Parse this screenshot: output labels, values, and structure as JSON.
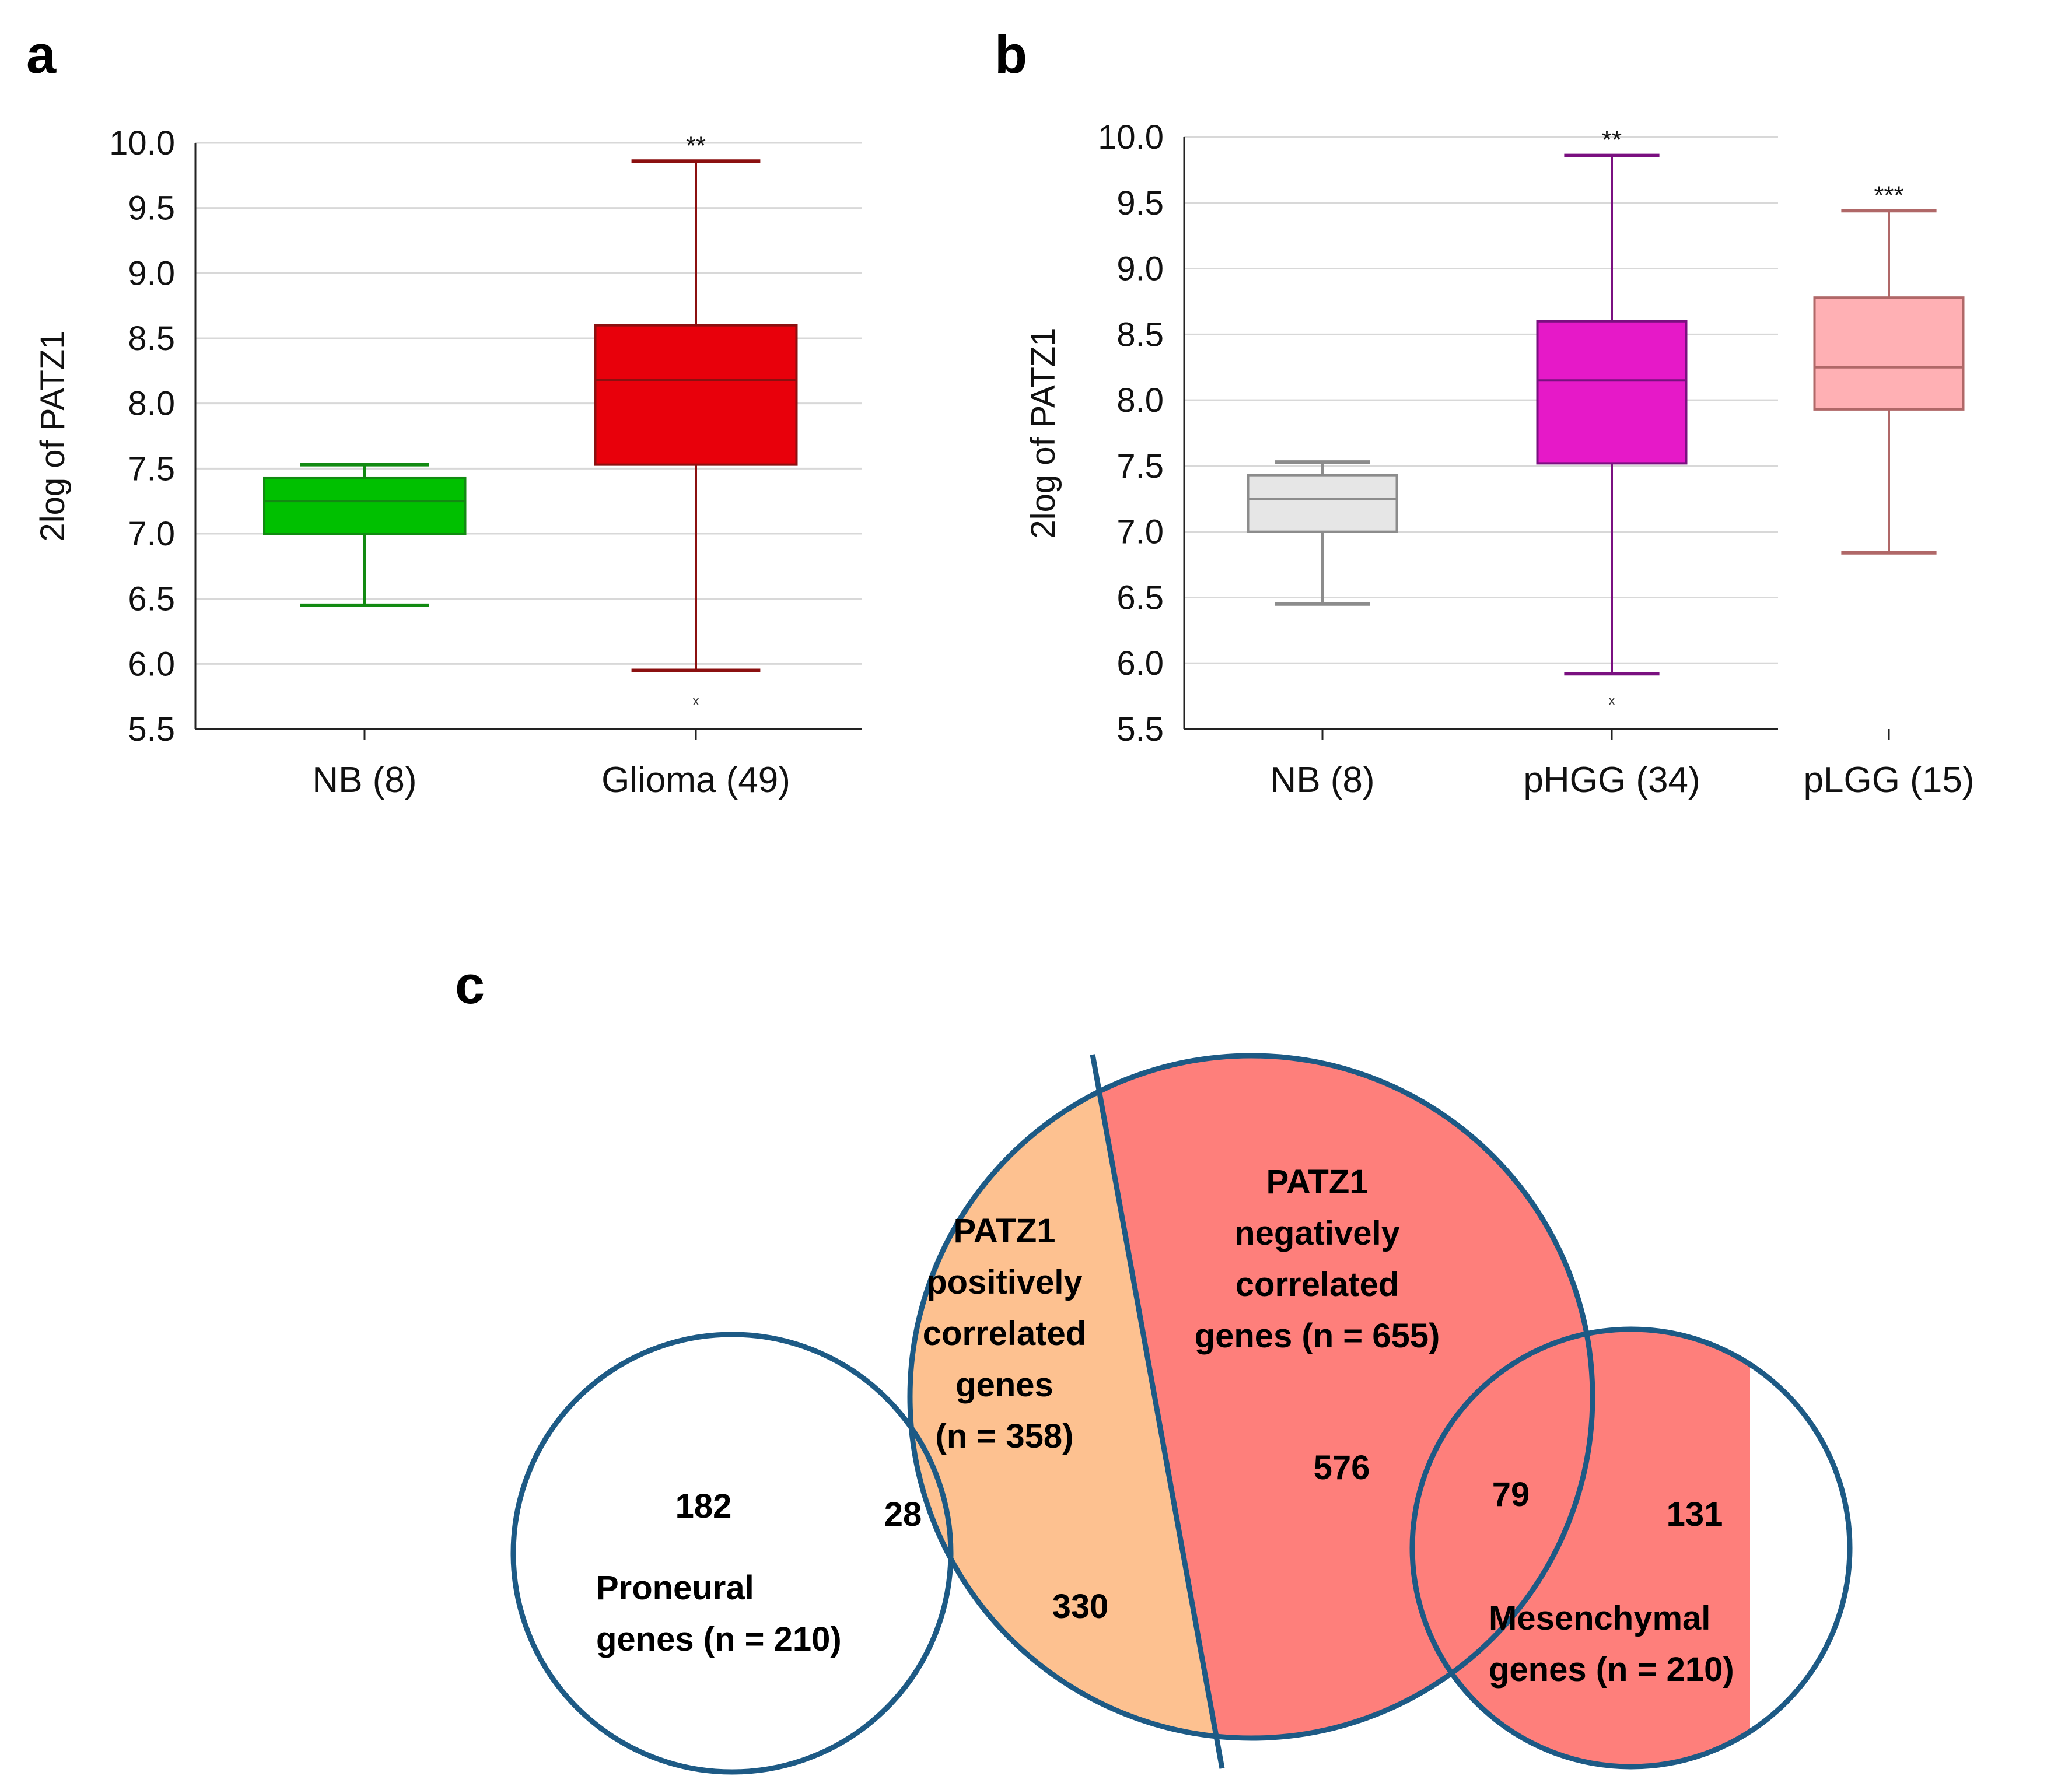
{
  "panels": {
    "a": "a",
    "b": "b",
    "c": "c"
  },
  "chart_data": [
    {
      "type": "box",
      "panel": "a",
      "ylabel": "2log of PATZ1",
      "ylim": [
        5.5,
        10.0
      ],
      "yticks": [
        5.5,
        6.0,
        6.5,
        7.0,
        7.5,
        8.0,
        8.5,
        9.0,
        9.5,
        10.0
      ],
      "ytick_labels": [
        "5.5",
        "6.0",
        "6.5",
        "7.0",
        "7.5",
        "8.0",
        "8.5",
        "9.0",
        "9.5",
        "10.0"
      ],
      "grid": true,
      "groups": [
        {
          "label": "NB  (8)",
          "min": 6.45,
          "q1": 7.0,
          "median": 7.25,
          "q3": 7.43,
          "max": 7.53,
          "fill": "#00c000",
          "stroke": "#128a12",
          "sig": "",
          "outlier": ""
        },
        {
          "label": "Glioma  (49)",
          "min": 5.95,
          "q1": 7.53,
          "median": 8.18,
          "q3": 8.6,
          "max": 9.86,
          "fill": "#e8000b",
          "stroke": "#8b1010",
          "sig": "**",
          "outlier": "x",
          "outlier_value": 5.72
        }
      ]
    },
    {
      "type": "box",
      "panel": "b",
      "ylabel": "2log of PATZ1",
      "ylim": [
        5.5,
        10.0
      ],
      "yticks": [
        5.5,
        6.0,
        6.5,
        7.0,
        7.5,
        8.0,
        8.5,
        9.0,
        9.5,
        10.0
      ],
      "ytick_labels": [
        "5.5",
        "6.0",
        "6.5",
        "7.0",
        "7.5",
        "8.0",
        "8.5",
        "9.0",
        "9.5",
        "10.0"
      ],
      "grid": true,
      "groups": [
        {
          "label": "NB  (8)",
          "min": 6.45,
          "q1": 7.0,
          "median": 7.25,
          "q3": 7.43,
          "max": 7.53,
          "fill": "#e6e6e6",
          "stroke": "#8c8c8c",
          "sig": "",
          "outlier": ""
        },
        {
          "label": "pHGG (34)",
          "min": 5.92,
          "q1": 7.52,
          "median": 8.15,
          "q3": 8.6,
          "max": 9.86,
          "fill": "#e619c8",
          "stroke": "#7a1080",
          "sig": "**",
          "outlier": "x",
          "outlier_value": 5.72
        },
        {
          "label": "pLGG (15)",
          "min": 6.84,
          "q1": 7.93,
          "median": 8.25,
          "q3": 8.78,
          "max": 9.44,
          "fill": "#ffb0b4",
          "stroke": "#b06868",
          "sig": "***",
          "outlier": ""
        }
      ]
    },
    {
      "type": "venn",
      "panel": "c",
      "sets": [
        {
          "name": "PATZ1 positively correlated genes",
          "lines": [
            "PATZ1",
            "positively",
            "correlated",
            "genes",
            "(n = 358)"
          ],
          "color": "#fdc190"
        },
        {
          "name": "PATZ1 negatively correlated genes",
          "lines": [
            "PATZ1",
            "negatively",
            "correlated",
            "genes (n = 655)"
          ],
          "color": "#fe7f7b"
        },
        {
          "name": "Proneural genes",
          "lines": [
            "Proneural",
            "genes (n = 210)"
          ],
          "color": "#ffffff"
        },
        {
          "name": "Mesenchymal genes",
          "lines": [
            "Mesenchymal",
            "genes (n = 210)"
          ],
          "color": "#ffffff"
        }
      ],
      "outline_color": "#1d5a85",
      "regions": {
        "proneural_only": "182",
        "proneural_positive": "28",
        "positive_only": "330",
        "negative_only": "576",
        "negative_mesenchymal": "79",
        "mesenchymal_only": "131"
      }
    }
  ]
}
